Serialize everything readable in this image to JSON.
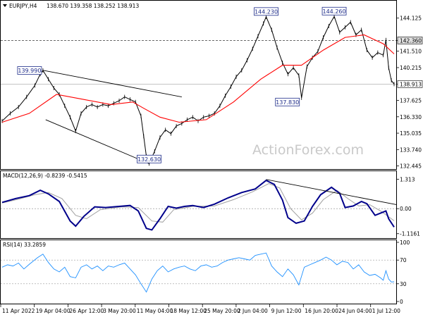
{
  "chart_data": {
    "type": "candlestick",
    "symbol_header": "EURJPY,H4",
    "ohlc_header": "138.670 139.358 138.252 138.913",
    "watermark": "ActionForex.com",
    "colors": {
      "price": "#000000",
      "ma": "#ff0000",
      "macd": "#00008b",
      "signal": "#a0a0a0",
      "rsi": "#1e90ff",
      "callout": "#1f2d8a",
      "trendline": "#000000"
    },
    "price_panel": {
      "ylim": [
        132.2,
        145.5
      ],
      "y_ticks": [
        "144.125",
        "142.360",
        "141.510",
        "140.215",
        "138.913",
        "137.625",
        "136.330",
        "135.035",
        "133.740",
        "132.445"
      ],
      "current_price": 138.913,
      "dashed_level": 142.36,
      "callouts": [
        {
          "label": "139.990",
          "x": 15,
          "value": 139.99
        },
        {
          "label": "132.630",
          "x": 54,
          "value": 132.63
        },
        {
          "label": "144.230",
          "x": 97,
          "value": 144.23
        },
        {
          "label": "137.830",
          "x": 110,
          "value": 137.83
        },
        {
          "label": "144.260",
          "x": 122,
          "value": 144.26
        }
      ],
      "price_path": [
        [
          0,
          136.0
        ],
        [
          3,
          136.6
        ],
        [
          6,
          137.1
        ],
        [
          9,
          137.9
        ],
        [
          12,
          138.8
        ],
        [
          14,
          139.7
        ],
        [
          15,
          139.99
        ],
        [
          17,
          139.3
        ],
        [
          19,
          138.6
        ],
        [
          21,
          138.1
        ],
        [
          23,
          137.2
        ],
        [
          25,
          136.3
        ],
        [
          27,
          135.2
        ],
        [
          29,
          136.6
        ],
        [
          31,
          137.1
        ],
        [
          33,
          137.3
        ],
        [
          35,
          137.1
        ],
        [
          37,
          137.3
        ],
        [
          39,
          137.2
        ],
        [
          41,
          137.4
        ],
        [
          43,
          137.6
        ],
        [
          45,
          137.9
        ],
        [
          47,
          137.7
        ],
        [
          49,
          137.5
        ],
        [
          51,
          136.4
        ],
        [
          52,
          134.8
        ],
        [
          53,
          133.2
        ],
        [
          54,
          132.63
        ],
        [
          56,
          133.6
        ],
        [
          58,
          134.7
        ],
        [
          60,
          135.3
        ],
        [
          62,
          135.0
        ],
        [
          64,
          135.6
        ],
        [
          66,
          135.8
        ],
        [
          68,
          136.1
        ],
        [
          70,
          136.3
        ],
        [
          72,
          136.0
        ],
        [
          74,
          136.3
        ],
        [
          76,
          136.4
        ],
        [
          78,
          136.6
        ],
        [
          80,
          137.2
        ],
        [
          82,
          138.0
        ],
        [
          84,
          138.7
        ],
        [
          86,
          139.5
        ],
        [
          88,
          140.0
        ],
        [
          90,
          140.8
        ],
        [
          92,
          141.7
        ],
        [
          94,
          142.7
        ],
        [
          96,
          143.7
        ],
        [
          97,
          144.23
        ],
        [
          99,
          143.2
        ],
        [
          101,
          141.8
        ],
        [
          103,
          140.6
        ],
        [
          105,
          139.7
        ],
        [
          107,
          140.2
        ],
        [
          109,
          139.6
        ],
        [
          110,
          137.83
        ],
        [
          112,
          140.3
        ],
        [
          114,
          141.0
        ],
        [
          116,
          141.5
        ],
        [
          118,
          142.6
        ],
        [
          120,
          143.5
        ],
        [
          122,
          144.26
        ],
        [
          124,
          143.0
        ],
        [
          126,
          143.4
        ],
        [
          128,
          143.8
        ],
        [
          130,
          142.8
        ],
        [
          132,
          143.2
        ],
        [
          134,
          141.6
        ],
        [
          136,
          141.0
        ],
        [
          138,
          141.4
        ],
        [
          140,
          141.2
        ],
        [
          141,
          142.4
        ],
        [
          142,
          140.2
        ],
        [
          143,
          139.2
        ],
        [
          144,
          138.913
        ]
      ],
      "ma_path": [
        [
          0,
          135.9
        ],
        [
          10,
          136.6
        ],
        [
          20,
          138.1
        ],
        [
          30,
          137.7
        ],
        [
          40,
          137.3
        ],
        [
          48,
          137.5
        ],
        [
          52,
          137.0
        ],
        [
          58,
          136.3
        ],
        [
          65,
          135.9
        ],
        [
          75,
          136.1
        ],
        [
          85,
          137.5
        ],
        [
          95,
          139.3
        ],
        [
          103,
          140.4
        ],
        [
          110,
          140.4
        ],
        [
          118,
          141.6
        ],
        [
          126,
          142.6
        ],
        [
          133,
          142.8
        ],
        [
          137,
          142.4
        ],
        [
          140,
          142.1
        ],
        [
          144,
          141.3
        ]
      ],
      "trendlines": [
        {
          "from": [
            15,
            140.0
          ],
          "to": [
            66,
            137.9
          ]
        },
        {
          "from": [
            16,
            136.1
          ],
          "to": [
            54,
            132.63
          ]
        }
      ]
    },
    "macd_panel": {
      "title": "MACD(12,26,9) -0.8239 -0.5415",
      "ylim": [
        -1.25,
        1.45
      ],
      "y_ticks": [
        "1.313",
        "0.00",
        "-1.1161"
      ],
      "macd_path": [
        [
          0,
          0.28
        ],
        [
          5,
          0.45
        ],
        [
          10,
          0.58
        ],
        [
          14,
          0.82
        ],
        [
          17,
          0.66
        ],
        [
          21,
          0.32
        ],
        [
          25,
          -0.55
        ],
        [
          27,
          -0.78
        ],
        [
          30,
          -0.35
        ],
        [
          34,
          0.08
        ],
        [
          38,
          0.05
        ],
        [
          43,
          0.1
        ],
        [
          47,
          0.14
        ],
        [
          50,
          -0.1
        ],
        [
          53,
          -0.88
        ],
        [
          55,
          -0.95
        ],
        [
          58,
          -0.45
        ],
        [
          61,
          0.1
        ],
        [
          64,
          0.02
        ],
        [
          67,
          0.1
        ],
        [
          70,
          0.14
        ],
        [
          74,
          0.05
        ],
        [
          78,
          0.2
        ],
        [
          83,
          0.48
        ],
        [
          88,
          0.72
        ],
        [
          93,
          0.88
        ],
        [
          97,
          1.26
        ],
        [
          100,
          1.08
        ],
        [
          103,
          0.38
        ],
        [
          105,
          -0.4
        ],
        [
          108,
          -0.65
        ],
        [
          111,
          -0.55
        ],
        [
          114,
          0.1
        ],
        [
          117,
          0.62
        ],
        [
          121,
          0.95
        ],
        [
          124,
          0.68
        ],
        [
          126,
          0.05
        ],
        [
          129,
          0.12
        ],
        [
          132,
          0.32
        ],
        [
          134,
          0.22
        ],
        [
          137,
          -0.3
        ],
        [
          139,
          -0.2
        ],
        [
          141,
          -0.1
        ],
        [
          142,
          -0.45
        ],
        [
          144,
          -0.82
        ]
      ],
      "signal_path": [
        [
          0,
          0.25
        ],
        [
          6,
          0.42
        ],
        [
          12,
          0.62
        ],
        [
          17,
          0.72
        ],
        [
          22,
          0.45
        ],
        [
          27,
          -0.3
        ],
        [
          31,
          -0.45
        ],
        [
          36,
          -0.05
        ],
        [
          44,
          0.08
        ],
        [
          50,
          0.05
        ],
        [
          55,
          -0.55
        ],
        [
          59,
          -0.6
        ],
        [
          63,
          -0.05
        ],
        [
          70,
          0.1
        ],
        [
          78,
          0.12
        ],
        [
          85,
          0.4
        ],
        [
          92,
          0.75
        ],
        [
          98,
          1.12
        ],
        [
          102,
          0.92
        ],
        [
          106,
          0.0
        ],
        [
          110,
          -0.5
        ],
        [
          114,
          -0.2
        ],
        [
          118,
          0.4
        ],
        [
          123,
          0.82
        ],
        [
          127,
          0.45
        ],
        [
          131,
          0.12
        ],
        [
          135,
          0.18
        ],
        [
          139,
          -0.1
        ],
        [
          144,
          -0.54
        ]
      ],
      "trendline": {
        "from": [
          97,
          1.3
        ],
        "to": [
          146,
          0.18
        ]
      }
    },
    "rsi_panel": {
      "title": "RSI(14) 33.2859",
      "ylim": [
        0,
        100
      ],
      "levels": [
        70,
        30
      ],
      "y_ticks": [
        "100",
        "70",
        "30",
        "0"
      ],
      "rsi_path": [
        [
          0,
          58
        ],
        [
          2,
          62
        ],
        [
          4,
          60
        ],
        [
          6,
          65
        ],
        [
          8,
          55
        ],
        [
          10,
          63
        ],
        [
          13,
          74
        ],
        [
          15,
          80
        ],
        [
          17,
          66
        ],
        [
          19,
          55
        ],
        [
          21,
          50
        ],
        [
          23,
          58
        ],
        [
          25,
          42
        ],
        [
          27,
          40
        ],
        [
          29,
          58
        ],
        [
          31,
          62
        ],
        [
          33,
          55
        ],
        [
          35,
          60
        ],
        [
          37,
          52
        ],
        [
          39,
          60
        ],
        [
          41,
          58
        ],
        [
          43,
          62
        ],
        [
          45,
          65
        ],
        [
          47,
          55
        ],
        [
          49,
          45
        ],
        [
          51,
          30
        ],
        [
          53,
          16
        ],
        [
          55,
          38
        ],
        [
          57,
          52
        ],
        [
          59,
          60
        ],
        [
          61,
          50
        ],
        [
          63,
          55
        ],
        [
          65,
          58
        ],
        [
          67,
          60
        ],
        [
          69,
          55
        ],
        [
          71,
          52
        ],
        [
          73,
          60
        ],
        [
          75,
          62
        ],
        [
          77,
          58
        ],
        [
          79,
          60
        ],
        [
          81,
          66
        ],
        [
          83,
          70
        ],
        [
          85,
          72
        ],
        [
          87,
          74
        ],
        [
          89,
          72
        ],
        [
          91,
          70
        ],
        [
          93,
          78
        ],
        [
          95,
          80
        ],
        [
          97,
          82
        ],
        [
          99,
          60
        ],
        [
          101,
          50
        ],
        [
          103,
          42
        ],
        [
          105,
          55
        ],
        [
          107,
          45
        ],
        [
          109,
          28
        ],
        [
          111,
          58
        ],
        [
          113,
          62
        ],
        [
          115,
          66
        ],
        [
          117,
          70
        ],
        [
          119,
          75
        ],
        [
          121,
          70
        ],
        [
          123,
          62
        ],
        [
          125,
          68
        ],
        [
          127,
          66
        ],
        [
          129,
          55
        ],
        [
          131,
          62
        ],
        [
          133,
          50
        ],
        [
          135,
          44
        ],
        [
          137,
          46
        ],
        [
          139,
          40
        ],
        [
          140,
          36
        ],
        [
          141,
          52
        ],
        [
          142,
          38
        ],
        [
          143,
          33
        ],
        [
          144,
          33.29
        ]
      ]
    },
    "x_ticks": [
      "11 Apr 2022",
      "19 Apr 04:00",
      "26 Apr 12:00",
      "3 May 20:00",
      "11 May 04:00",
      "18 May 12:00",
      "25 May 20:00",
      "2 Jun 04:00",
      "9 Jun 12:00",
      "16 Jun 20:00",
      "24 Jun 04:00",
      "1 Jul 12:00"
    ]
  }
}
